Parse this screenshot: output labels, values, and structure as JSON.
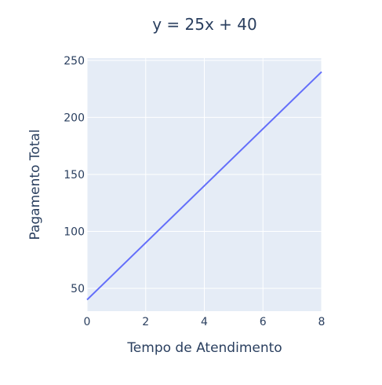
{
  "chart_data": {
    "type": "line",
    "title": "y = 25x + 40",
    "xlabel": "Tempo de Atendimento",
    "ylabel": "Pagamento Total",
    "xlim": [
      0,
      8
    ],
    "ylim": [
      30,
      252
    ],
    "xticks": [
      0,
      2,
      4,
      6,
      8
    ],
    "yticks": [
      50,
      100,
      150,
      200,
      250
    ],
    "grid": true,
    "legend": "none",
    "series": [
      {
        "x": [
          0,
          8
        ],
        "y": [
          40,
          240
        ]
      }
    ]
  },
  "colors": {
    "plot_background": "#e5ecf6",
    "grid": "#ffffff",
    "line": "#636efa",
    "text": "#2a3f5f"
  }
}
